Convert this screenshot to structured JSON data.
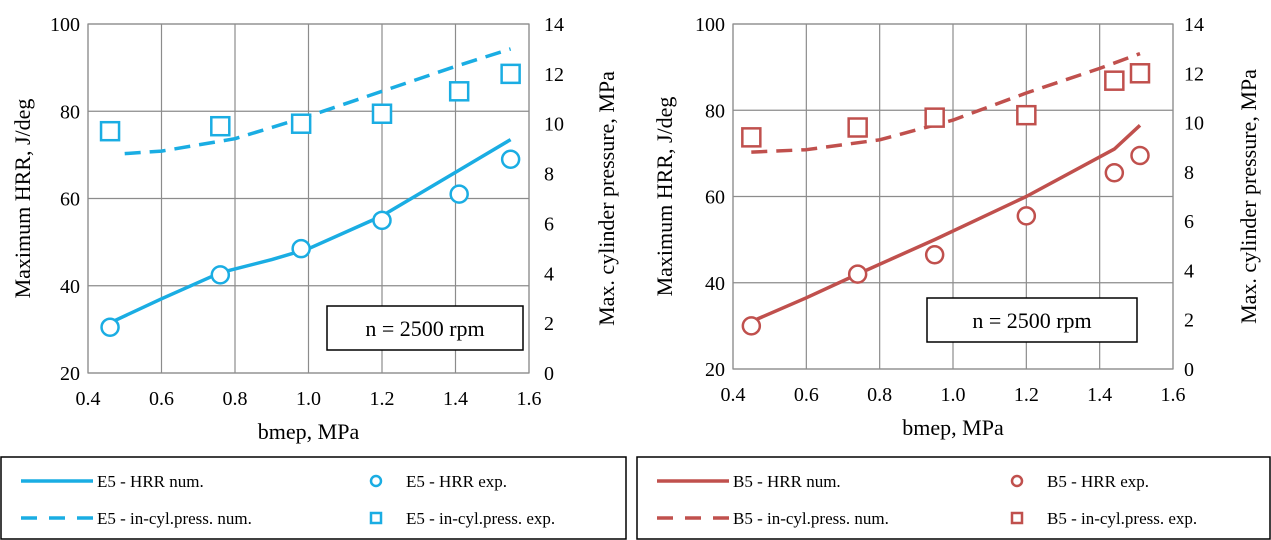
{
  "chart_data": [
    {
      "type": "line",
      "xlabel": "bmep, MPa",
      "ylabel": "Maximum HRR,  J/deg",
      "y2label": "Max. cylinder pressure, MPa",
      "xlim": [
        0.4,
        1.6
      ],
      "ylim": [
        20,
        100
      ],
      "y2lim": [
        0,
        14
      ],
      "xticks": [
        "0.4",
        "0.6",
        "0.8",
        "1.0",
        "1.2",
        "1.4",
        "1.6"
      ],
      "yticks": [
        "20",
        "40",
        "60",
        "80",
        "100"
      ],
      "y2ticks": [
        "0",
        "2",
        "4",
        "6",
        "8",
        "10",
        "12",
        "14"
      ],
      "grid": true,
      "annotation": "n = 2500 rpm",
      "color": "#1AADE3",
      "series": [
        {
          "name": "E5 - HRR num.",
          "axis": "left",
          "style": "solid",
          "x": [
            0.46,
            0.6,
            0.76,
            0.9,
            1.0,
            1.2,
            1.3,
            1.41,
            1.55
          ],
          "y": [
            31.5,
            37,
            43,
            46,
            48.5,
            56,
            61,
            66.5,
            73.5
          ]
        },
        {
          "name": "E5 - HRR exp.",
          "axis": "left",
          "marker": "circle",
          "x": [
            0.46,
            0.76,
            0.98,
            1.2,
            1.41,
            1.55
          ],
          "y": [
            30.5,
            42.5,
            48.5,
            55,
            61,
            69
          ]
        },
        {
          "name": "E5 - in-cyl.press. num.",
          "axis": "right",
          "style": "dashed",
          "x": [
            0.5,
            0.6,
            0.8,
            1.0,
            1.2,
            1.4,
            1.55
          ],
          "y": [
            8.8,
            8.9,
            9.4,
            10.3,
            11.3,
            12.3,
            13.0
          ]
        },
        {
          "name": "E5 - in-cyl.press. exp.",
          "axis": "right",
          "marker": "square",
          "x": [
            0.46,
            0.76,
            0.98,
            1.2,
            1.41,
            1.55
          ],
          "y": [
            9.7,
            9.9,
            10.0,
            10.4,
            11.3,
            12.0
          ]
        }
      ]
    },
    {
      "type": "line",
      "xlabel": "bmep, MPa",
      "ylabel": "Maximum HRR,  J/deg",
      "y2label": "Max. cylinder pressure, MPa",
      "xlim": [
        0.4,
        1.6
      ],
      "ylim": [
        20,
        100
      ],
      "y2lim": [
        0,
        14
      ],
      "xticks": [
        "0.4",
        "0.6",
        "0.8",
        "1.0",
        "1.2",
        "1.4",
        "1.6"
      ],
      "yticks": [
        "20",
        "40",
        "60",
        "80",
        "100"
      ],
      "y2ticks": [
        "0",
        "2",
        "4",
        "6",
        "8",
        "10",
        "12",
        "14"
      ],
      "grid": true,
      "annotation": "n = 2500 rpm",
      "color": "#C0504D",
      "series": [
        {
          "name": "B5 - HRR num.",
          "axis": "left",
          "style": "solid",
          "x": [
            0.45,
            0.6,
            0.74,
            0.95,
            1.2,
            1.44,
            1.51
          ],
          "y": [
            31,
            36.5,
            42,
            50,
            60,
            71,
            76.5
          ]
        },
        {
          "name": "B5 - HRR exp.",
          "axis": "left",
          "marker": "circle",
          "x": [
            0.45,
            0.74,
            0.95,
            1.2,
            1.44,
            1.51
          ],
          "y": [
            30,
            42,
            46.5,
            55.5,
            65.5,
            69.5
          ]
        },
        {
          "name": "B5 - in-cyl.press. num.",
          "axis": "right",
          "style": "dashed",
          "x": [
            0.45,
            0.6,
            0.8,
            1.0,
            1.2,
            1.4,
            1.51
          ],
          "y": [
            8.8,
            8.9,
            9.3,
            10.1,
            11.2,
            12.2,
            12.8
          ]
        },
        {
          "name": "B5 - in-cyl.press. exp.",
          "axis": "right",
          "marker": "square",
          "x": [
            0.45,
            0.74,
            0.95,
            1.2,
            1.44,
            1.51
          ],
          "y": [
            9.4,
            9.8,
            10.2,
            10.3,
            11.7,
            12.0
          ]
        }
      ]
    }
  ]
}
